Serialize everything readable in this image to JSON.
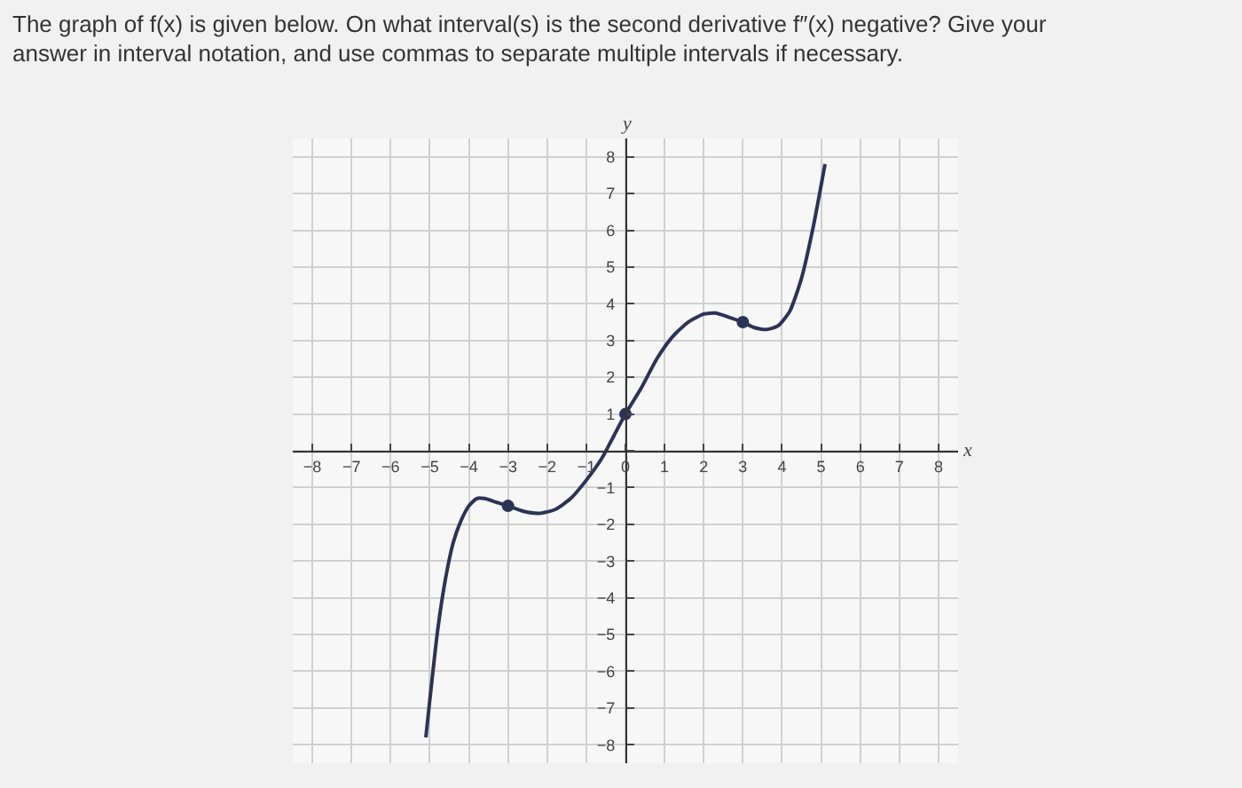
{
  "chart_data": {
    "type": "line",
    "title": "The graph of f(x) is given below. On what interval(s) is the second derivative f″(x) negative? Give your answer in interval notation, and use commas to separate multiple intervals if necessary.",
    "xlabel": "x",
    "ylabel": "y",
    "series": [
      {
        "color": "#2b3456",
        "marker": "none",
        "x": [
          -5.1,
          -5.0,
          -4.8,
          -4.6,
          -4.4,
          -4.2,
          -4.0,
          -3.8,
          -3.6,
          -3.3,
          -3.0,
          -2.6,
          -2.2,
          -1.8,
          -1.4,
          -1.0,
          -0.6,
          -0.3,
          0,
          0.4,
          0.8,
          1.2,
          1.6,
          2.0,
          2.3,
          2.6,
          3.0,
          3.3,
          3.6,
          3.9,
          4.2,
          4.5,
          4.8,
          5.1
        ],
        "values": [
          -7.8,
          -6.8,
          -4.9,
          -3.5,
          -2.5,
          -1.9,
          -1.5,
          -1.3,
          -1.3,
          -1.4,
          -1.5,
          -1.65,
          -1.7,
          -1.6,
          -1.3,
          -0.8,
          -0.2,
          0.4,
          1.0,
          1.7,
          2.5,
          3.1,
          3.5,
          3.72,
          3.75,
          3.65,
          3.5,
          3.35,
          3.3,
          3.4,
          3.8,
          4.7,
          6.1,
          7.8
        ]
      },
      {
        "type": "scatter",
        "color": "#2b3456",
        "marker": "circle",
        "x": [
          -3,
          0,
          3
        ],
        "values": [
          -1.5,
          1,
          3.5
        ]
      }
    ],
    "xlim": [
      -8.5,
      8.5
    ],
    "ylim": [
      -8.5,
      8.5
    ],
    "xticks": [
      -8,
      -7,
      -6,
      -5,
      -4,
      -3,
      -2,
      -1,
      0,
      1,
      2,
      3,
      4,
      5,
      6,
      7,
      8
    ],
    "yticks": [
      -8,
      -7,
      -6,
      -5,
      -4,
      -3,
      -2,
      -1,
      {
        "value": 0,
        "label": null
      },
      1,
      2,
      3,
      4,
      5,
      6,
      7,
      8
    ],
    "grid": true
  }
}
